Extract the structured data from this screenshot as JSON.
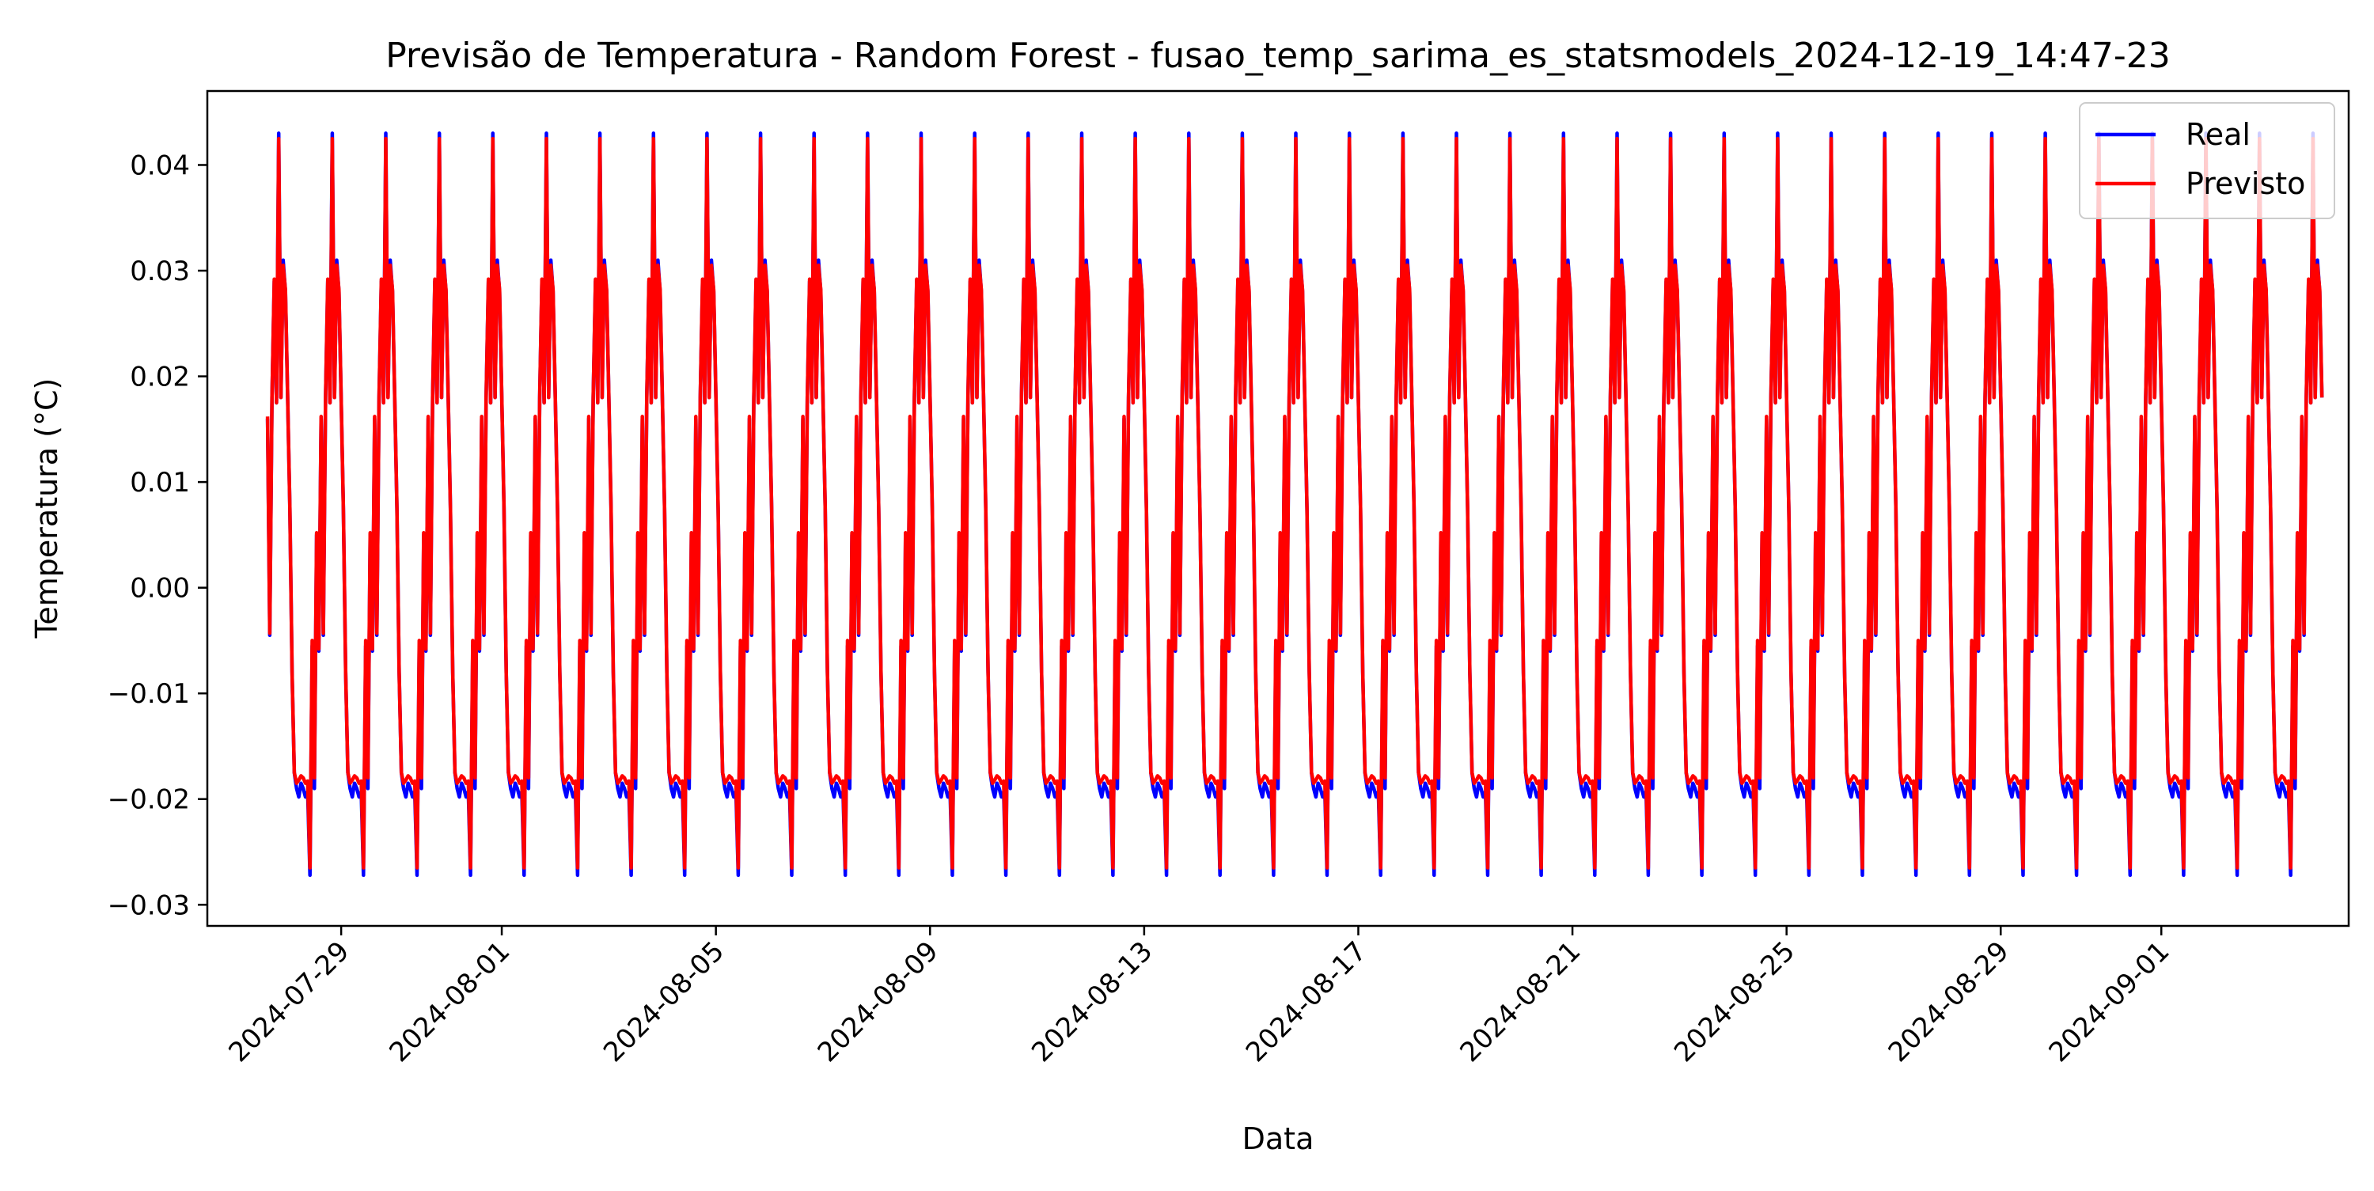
{
  "chart_data": {
    "type": "line",
    "title": "Previsão de Temperatura - Random Forest - fusao_temp_sarima_es_statsmodels_2024-12-19_14:47-23",
    "xlabel": "Data",
    "ylabel": "Temperatura (°C)",
    "x_range": [
      "2024-07-26T12:00",
      "2024-09-04T12:00"
    ],
    "data_start": "2024-07-27T15:00",
    "data_end": "2024-09-04T00:00",
    "ylim": [
      -0.032,
      0.047
    ],
    "x_ticks": [
      {
        "date": "2024-07-29",
        "label": "2024-07-29"
      },
      {
        "date": "2024-08-01",
        "label": "2024-08-01"
      },
      {
        "date": "2024-08-05",
        "label": "2024-08-05"
      },
      {
        "date": "2024-08-09",
        "label": "2024-08-09"
      },
      {
        "date": "2024-08-13",
        "label": "2024-08-13"
      },
      {
        "date": "2024-08-17",
        "label": "2024-08-17"
      },
      {
        "date": "2024-08-21",
        "label": "2024-08-21"
      },
      {
        "date": "2024-08-25",
        "label": "2024-08-25"
      },
      {
        "date": "2024-08-29",
        "label": "2024-08-29"
      },
      {
        "date": "2024-09-01",
        "label": "2024-09-01"
      }
    ],
    "y_ticks": [
      {
        "value": 0.04,
        "label": "0.04"
      },
      {
        "value": 0.03,
        "label": "0.03"
      },
      {
        "value": 0.02,
        "label": "0.02"
      },
      {
        "value": 0.01,
        "label": "0.01"
      },
      {
        "value": 0.0,
        "label": "0.00"
      },
      {
        "value": -0.01,
        "label": "−0.01"
      },
      {
        "value": -0.02,
        "label": "−0.02"
      },
      {
        "value": -0.03,
        "label": "−0.03"
      }
    ],
    "daily_profile_hour": [
      0,
      1,
      2,
      3,
      4,
      5,
      6,
      7,
      8,
      9,
      10,
      11,
      12,
      13,
      14,
      15,
      16,
      17,
      18,
      19,
      20,
      21,
      22,
      23
    ],
    "series": [
      {
        "name": "Real",
        "color": "#0000ff",
        "daily_profile": [
          0.018,
          0.0075,
          -0.008,
          -0.0175,
          -0.019,
          -0.0198,
          -0.0185,
          -0.019,
          -0.0198,
          -0.0193,
          -0.0272,
          -0.0055,
          -0.019,
          0.005,
          -0.006,
          0.016,
          -0.0045,
          0.018,
          0.029,
          0.0175,
          0.043,
          0.018,
          0.031,
          0.028
        ]
      },
      {
        "name": "Previsto",
        "color": "#ff0000",
        "daily_profile": [
          0.018,
          0.0075,
          -0.008,
          -0.0175,
          -0.0185,
          -0.0182,
          -0.0178,
          -0.018,
          -0.0185,
          -0.0183,
          -0.0265,
          -0.005,
          -0.018,
          0.0052,
          -0.0058,
          0.0162,
          -0.0043,
          0.018,
          0.0292,
          0.0175,
          0.0425,
          0.018,
          0.0305,
          0.0282
        ]
      }
    ],
    "legend": {
      "position": "top-right",
      "entries": [
        "Real",
        "Previsto"
      ]
    },
    "grid": false
  }
}
